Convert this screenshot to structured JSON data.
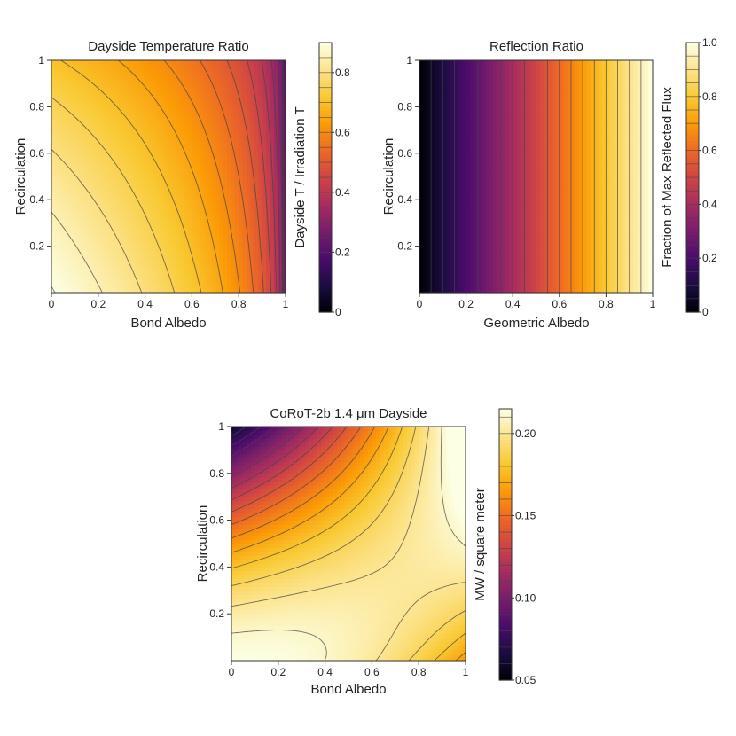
{
  "figure": {
    "background": "#ffffff"
  },
  "colormap": [
    "#000004",
    "#1b0c41",
    "#4a0c6b",
    "#781c6d",
    "#a52c60",
    "#cf4446",
    "#ed6925",
    "#fb9b06",
    "#f9c932",
    "#fce38a",
    "#fcffe4"
  ],
  "chart_data": [
    {
      "id": "dayside",
      "type": "heatmap",
      "title": "Dayside Temperature Ratio",
      "xlabel": "Bond Albedo",
      "ylabel": "Recirculation",
      "xlim": [
        0,
        1
      ],
      "ylim": [
        0,
        1
      ],
      "xticks": [
        "0",
        "0.2",
        "0.4",
        "0.6",
        "0.8",
        "1"
      ],
      "yticks": [
        "0.2",
        "0.4",
        "0.6",
        "0.8",
        "1"
      ],
      "formula": "(1-A)^0.25 * (2/3 - 5/12*R)^0.25 / 0.9036",
      "function": "dayside_ratio",
      "contour_levels": [
        0.2,
        0.25,
        0.3,
        0.35,
        0.4,
        0.45,
        0.5,
        0.55,
        0.6,
        0.65,
        0.7,
        0.75,
        0.8,
        0.85,
        0.9,
        0.95
      ],
      "colorbar": {
        "label": "Dayside T / Irradiation T",
        "range": [
          0,
          0.9
        ],
        "ticks": [
          "0",
          "0.2",
          "0.4",
          "0.6",
          "0.8"
        ],
        "tick_values": [
          0,
          0.2,
          0.4,
          0.6,
          0.8
        ]
      }
    },
    {
      "id": "reflection",
      "type": "heatmap",
      "title": "Reflection Ratio",
      "xlabel": "Geometric Albedo",
      "ylabel": "Recirculation",
      "xlim": [
        0,
        1
      ],
      "ylim": [
        0,
        1
      ],
      "xticks": [
        "0",
        "0.2",
        "0.4",
        "0.6",
        "0.8",
        "1"
      ],
      "yticks": [
        "0.2",
        "0.4",
        "0.6",
        "0.8",
        "1"
      ],
      "formula": "Ag",
      "function": "reflection_ratio",
      "contour_levels": [
        0.05,
        0.1,
        0.15,
        0.2,
        0.25,
        0.3,
        0.35,
        0.4,
        0.45,
        0.5,
        0.55,
        0.6,
        0.65,
        0.7,
        0.75,
        0.8,
        0.85,
        0.9,
        0.95
      ],
      "colorbar": {
        "label": "Fraction of Max Reflected Flux",
        "range": [
          0,
          1
        ],
        "ticks": [
          "0",
          "0.2",
          "0.4",
          "0.6",
          "0.8",
          "1.0"
        ],
        "tick_values": [
          0,
          0.2,
          0.4,
          0.6,
          0.8,
          1.0
        ]
      }
    },
    {
      "id": "corot",
      "type": "heatmap",
      "title": "CoRoT-2b 1.4 μm Dayside",
      "xlabel": "Bond Albedo",
      "ylabel": "Recirculation",
      "xlim": [
        0,
        1
      ],
      "ylim": [
        0,
        1
      ],
      "xticks": [
        "0",
        "0.2",
        "0.4",
        "0.6",
        "0.8",
        "1"
      ],
      "yticks": [
        "0.2",
        "0.4",
        "0.6",
        "0.8",
        "1"
      ],
      "function": "corot_flux",
      "contour_levels": [
        0.06,
        0.07,
        0.08,
        0.09,
        0.1,
        0.11,
        0.12,
        0.13,
        0.14,
        0.15,
        0.16,
        0.17,
        0.18,
        0.19,
        0.2,
        0.21
      ],
      "colorbar": {
        "label": "MW / square meter",
        "range": [
          0.05,
          0.215
        ],
        "ticks": [
          "0.05",
          "0.10",
          "0.15",
          "0.20"
        ],
        "tick_values": [
          0.05,
          0.1,
          0.15,
          0.2
        ]
      }
    }
  ]
}
